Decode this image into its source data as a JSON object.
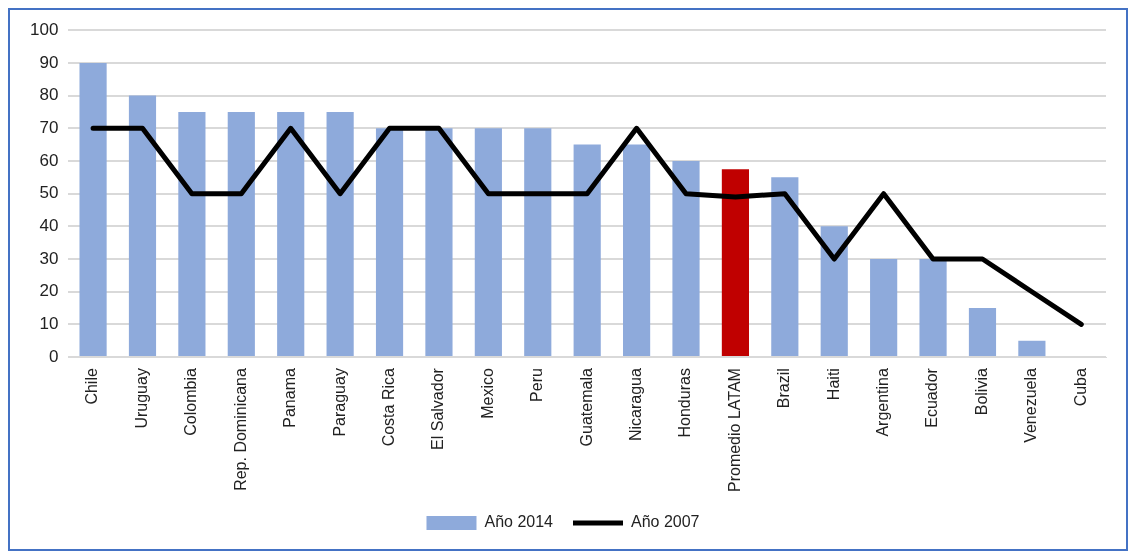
{
  "chart_data": {
    "type": "bar",
    "categories": [
      "Chile",
      "Uruguay",
      "Colombia",
      "Rep. Dominicana",
      "Panama",
      "Paraguay",
      "Costa Rica",
      "El Salvador",
      "Mexico",
      "Peru",
      "Guatemala",
      "Nicaragua",
      "Honduras",
      "Promedio LATAM",
      "Brazil",
      "Haiti",
      "Argentina",
      "Ecuador",
      "Bolivia",
      "Venezuela",
      "Cuba"
    ],
    "series": [
      {
        "name": "Año 2014",
        "color": "#8eaadb",
        "colors": [
          "#8eaadb",
          "#8eaadb",
          "#8eaadb",
          "#8eaadb",
          "#8eaadb",
          "#8eaadb",
          "#8eaadb",
          "#8eaadb",
          "#8eaadb",
          "#8eaadb",
          "#8eaadb",
          "#8eaadb",
          "#8eaadb",
          "#c00000",
          "#8eaadb",
          "#8eaadb",
          "#8eaadb",
          "#8eaadb",
          "#8eaadb",
          "#8eaadb",
          "#8eaadb"
        ],
        "values": [
          90,
          80,
          75,
          75,
          75,
          75,
          70,
          70,
          70,
          70,
          65,
          65,
          60,
          57.5,
          55,
          40,
          30,
          30,
          15,
          5,
          null
        ]
      },
      {
        "name": "Año 2007",
        "type": "line",
        "color": "#000000",
        "values": [
          70,
          70,
          50,
          50,
          70,
          50,
          70,
          70,
          50,
          50,
          50,
          70,
          50,
          49,
          50,
          30,
          50,
          30,
          30,
          20,
          10
        ]
      }
    ],
    "ylim": [
      0,
      100
    ],
    "yticks": [
      0,
      10,
      20,
      30,
      40,
      50,
      60,
      70,
      80,
      90,
      100
    ],
    "grid": "y",
    "legend": "bottom",
    "marker": "none"
  }
}
